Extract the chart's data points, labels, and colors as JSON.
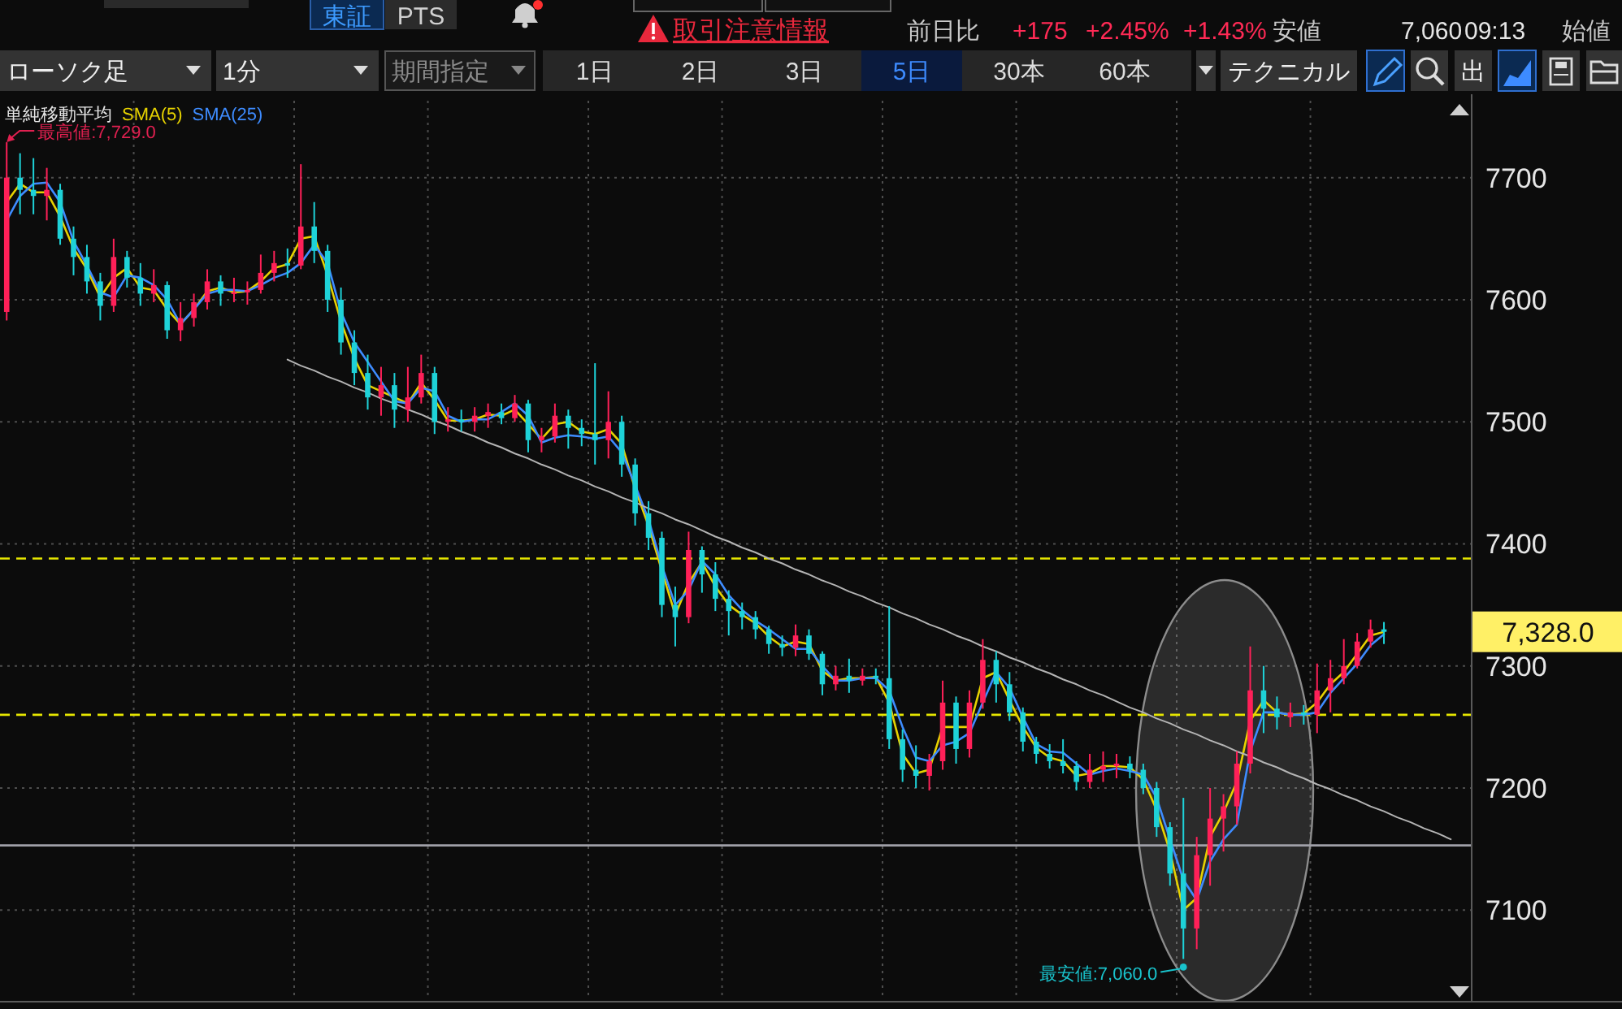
{
  "chart_data": {
    "type": "candlestick",
    "categories": [
      null,
      null,
      null,
      null,
      null,
      null,
      null,
      null,
      null,
      null,
      null,
      null,
      null,
      null,
      null,
      null,
      null,
      null,
      null,
      null,
      null,
      null,
      null,
      null,
      null,
      null,
      null,
      null,
      null,
      null,
      null,
      null,
      null,
      null,
      null,
      null,
      null,
      null,
      null,
      null,
      null,
      null,
      null,
      null,
      null,
      null,
      null,
      null,
      null,
      null,
      null,
      null,
      null,
      null,
      null,
      null,
      null,
      null,
      null,
      null,
      null,
      null,
      null,
      null,
      null,
      null,
      null,
      null,
      null,
      null,
      null,
      null,
      null,
      null,
      null,
      null,
      null,
      null,
      null,
      null,
      null,
      null,
      null,
      null,
      null,
      null,
      null,
      null,
      null,
      null,
      null,
      null,
      null,
      null,
      null,
      null,
      null,
      null,
      null,
      null,
      null,
      null,
      null,
      null,
      null,
      null,
      null,
      null,
      null,
      null
    ],
    "ohlc": [
      [
        7590,
        7729,
        7583,
        7700
      ],
      [
        7700,
        7720,
        7670,
        7690
      ],
      [
        7690,
        7716,
        7670,
        7685
      ],
      [
        7685,
        7708,
        7665,
        7690
      ],
      [
        7690,
        7695,
        7645,
        7650
      ],
      [
        7650,
        7660,
        7620,
        7635
      ],
      [
        7635,
        7645,
        7605,
        7615
      ],
      [
        7615,
        7622,
        7583,
        7595
      ],
      [
        7595,
        7650,
        7590,
        7635
      ],
      [
        7635,
        7640,
        7610,
        7618
      ],
      [
        7618,
        7630,
        7595,
        7605
      ],
      [
        7605,
        7625,
        7598,
        7612
      ],
      [
        7612,
        7615,
        7568,
        7575
      ],
      [
        7575,
        7598,
        7566,
        7585
      ],
      [
        7585,
        7605,
        7578,
        7598
      ],
      [
        7598,
        7625,
        7592,
        7615
      ],
      [
        7615,
        7620,
        7595,
        7605
      ],
      [
        7605,
        7618,
        7598,
        7606
      ],
      [
        7606,
        7615,
        7596,
        7608
      ],
      [
        7608,
        7637,
        7605,
        7622
      ],
      [
        7622,
        7640,
        7615,
        7630
      ],
      [
        7630,
        7642,
        7618,
        7628
      ],
      [
        7628,
        7711,
        7625,
        7660
      ],
      [
        7660,
        7680,
        7630,
        7640
      ],
      [
        7640,
        7645,
        7590,
        7600
      ],
      [
        7600,
        7610,
        7555,
        7565
      ],
      [
        7565,
        7575,
        7530,
        7540
      ],
      [
        7540,
        7555,
        7510,
        7520
      ],
      [
        7520,
        7545,
        7505,
        7530
      ],
      [
        7530,
        7540,
        7495,
        7510
      ],
      [
        7510,
        7545,
        7500,
        7520
      ],
      [
        7520,
        7555,
        7515,
        7540
      ],
      [
        7540,
        7545,
        7490,
        7500
      ],
      [
        7500,
        7512,
        7492,
        7502
      ],
      [
        7502,
        7510,
        7492,
        7500
      ],
      [
        7500,
        7512,
        7492,
        7505
      ],
      [
        7505,
        7515,
        7495,
        7508
      ],
      [
        7508,
        7515,
        7498,
        7503
      ],
      [
        7503,
        7522,
        7500,
        7515
      ],
      [
        7515,
        7518,
        7475,
        7485
      ],
      [
        7485,
        7495,
        7475,
        7488
      ],
      [
        7488,
        7515,
        7483,
        7505
      ],
      [
        7505,
        7510,
        7478,
        7495
      ],
      [
        7495,
        7502,
        7480,
        7490
      ],
      [
        7490,
        7548,
        7465,
        7485
      ],
      [
        7485,
        7525,
        7470,
        7500
      ],
      [
        7500,
        7505,
        7455,
        7465
      ],
      [
        7465,
        7470,
        7415,
        7425
      ],
      [
        7425,
        7435,
        7395,
        7405
      ],
      [
        7405,
        7410,
        7340,
        7350
      ],
      [
        7350,
        7365,
        7316,
        7340
      ],
      [
        7340,
        7410,
        7335,
        7395
      ],
      [
        7395,
        7398,
        7360,
        7375
      ],
      [
        7375,
        7385,
        7345,
        7355
      ],
      [
        7355,
        7362,
        7325,
        7345
      ],
      [
        7345,
        7352,
        7330,
        7340
      ],
      [
        7340,
        7345,
        7322,
        7330
      ],
      [
        7330,
        7333,
        7310,
        7318
      ],
      [
        7318,
        7325,
        7308,
        7315
      ],
      [
        7315,
        7334,
        7308,
        7325
      ],
      [
        7325,
        7330,
        7305,
        7310
      ],
      [
        7310,
        7312,
        7276,
        7285
      ],
      [
        7285,
        7300,
        7280,
        7292
      ],
      [
        7292,
        7306,
        7278,
        7288
      ],
      [
        7288,
        7298,
        7284,
        7292
      ],
      [
        7292,
        7298,
        7285,
        7290
      ],
      [
        7290,
        7349,
        7232,
        7240
      ],
      [
        7240,
        7248,
        7205,
        7215
      ],
      [
        7215,
        7235,
        7200,
        7210
      ],
      [
        7210,
        7228,
        7198,
        7222
      ],
      [
        7222,
        7288,
        7215,
        7270
      ],
      [
        7270,
        7275,
        7220,
        7232
      ],
      [
        7232,
        7280,
        7225,
        7270
      ],
      [
        7270,
        7322,
        7265,
        7305
      ],
      [
        7305,
        7312,
        7270,
        7285
      ],
      [
        7285,
        7295,
        7255,
        7262
      ],
      [
        7262,
        7266,
        7230,
        7238
      ],
      [
        7238,
        7242,
        7220,
        7228
      ],
      [
        7228,
        7236,
        7216,
        7222
      ],
      [
        7222,
        7240,
        7212,
        7218
      ],
      [
        7218,
        7222,
        7198,
        7205
      ],
      [
        7205,
        7228,
        7200,
        7215
      ],
      [
        7215,
        7230,
        7205,
        7218
      ],
      [
        7218,
        7228,
        7208,
        7220
      ],
      [
        7220,
        7226,
        7208,
        7215
      ],
      [
        7215,
        7220,
        7195,
        7200
      ],
      [
        7200,
        7205,
        7160,
        7168
      ],
      [
        7168,
        7172,
        7120,
        7130
      ],
      [
        7130,
        7192,
        7060,
        7085
      ],
      [
        7085,
        7160,
        7068,
        7145
      ],
      [
        7145,
        7200,
        7120,
        7175
      ],
      [
        7175,
        7195,
        7148,
        7185
      ],
      [
        7185,
        7230,
        7170,
        7220
      ],
      [
        7220,
        7316,
        7212,
        7280
      ],
      [
        7280,
        7300,
        7245,
        7265
      ],
      [
        7265,
        7275,
        7248,
        7258
      ],
      [
        7258,
        7270,
        7250,
        7262
      ],
      [
        7262,
        7268,
        7252,
        7260
      ],
      [
        7260,
        7302,
        7245,
        7280
      ],
      [
        7280,
        7305,
        7262,
        7290
      ],
      [
        7290,
        7322,
        7285,
        7300
      ],
      [
        7300,
        7327,
        7298,
        7320
      ],
      [
        7320,
        7338,
        7315,
        7330
      ],
      [
        7330,
        7336,
        7318,
        7328
      ],
      null,
      null,
      null,
      null,
      null,
      null
    ],
    "colors": [
      "#ff2058",
      "#1ed2d8",
      "#1ed2d8",
      "#ff2058",
      "#1ed2d8",
      "#1ed2d8",
      "#1ed2d8",
      "#1ed2d8",
      "#ff2058",
      "#1ed2d8",
      "#1ed2d8",
      "#ff2058",
      "#1ed2d8",
      "#ff2058",
      "#ff2058",
      "#ff2058",
      "#1ed2d8",
      "#ff2058",
      "#ff2058",
      "#ff2058",
      "#ff2058",
      "#1ed2d8",
      "#ff2058",
      "#1ed2d8",
      "#1ed2d8",
      "#1ed2d8",
      "#1ed2d8",
      "#1ed2d8",
      "#ff2058",
      "#1ed2d8",
      "#ff2058",
      "#ff2058",
      "#1ed2d8",
      "#ff2058",
      "#1ed2d8",
      "#ff2058",
      "#ff2058",
      "#1ed2d8",
      "#ff2058",
      "#1ed2d8",
      "#ff2058",
      "#ff2058",
      "#1ed2d8",
      "#1ed2d8",
      "#1ed2d8",
      "#ff2058",
      "#1ed2d8",
      "#1ed2d8",
      "#1ed2d8",
      "#1ed2d8",
      "#1ed2d8",
      "#ff2058",
      "#1ed2d8",
      "#1ed2d8",
      "#1ed2d8",
      "#1ed2d8",
      "#1ed2d8",
      "#1ed2d8",
      "#1ed2d8",
      "#ff2058",
      "#1ed2d8",
      "#1ed2d8",
      "#ff2058",
      "#1ed2d8",
      "#ff2058",
      "#1ed2d8",
      "#1ed2d8",
      "#1ed2d8",
      "#1ed2d8",
      "#ff2058",
      "#ff2058",
      "#1ed2d8",
      "#ff2058",
      "#ff2058",
      "#1ed2d8",
      "#1ed2d8",
      "#1ed2d8",
      "#1ed2d8",
      "#1ed2d8",
      "#1ed2d8",
      "#1ed2d8",
      "#ff2058",
      "#ff2058",
      "#ff2058",
      "#1ed2d8",
      "#1ed2d8",
      "#1ed2d8",
      "#1ed2d8",
      "#1ed2d8",
      "#ff2058",
      "#ff2058",
      "#ff2058",
      "#ff2058",
      "#ff2058",
      "#1ed2d8",
      "#1ed2d8",
      "#ff2058",
      "#1ed2d8",
      "#ff2058",
      "#ff2058",
      "#ff2058",
      "#ff2058",
      "#ff2058",
      "#1ed2d8",
      null,
      null,
      null,
      null,
      null,
      null
    ],
    "series": [
      {
        "name": "SMA(5)",
        "type": "line",
        "color": "#e6d200",
        "values": [
          7680,
          7695,
          7688,
          7688,
          7668,
          7642,
          7625,
          7602,
          7618,
          7626,
          7610,
          7608,
          7592,
          7580,
          7592,
          7607,
          7610,
          7606,
          7607,
          7615,
          7626,
          7629,
          7650,
          7652,
          7620,
          7582,
          7552,
          7530,
          7525,
          7520,
          7515,
          7532,
          7518,
          7501,
          7501,
          7502,
          7506,
          7505,
          7510,
          7498,
          7486,
          7498,
          7500,
          7492,
          7490,
          7494,
          7482,
          7445,
          7415,
          7378,
          7342,
          7368,
          7385,
          7365,
          7350,
          7342,
          7335,
          7324,
          7316,
          7320,
          7318,
          7296,
          7288,
          7290,
          7290,
          7291,
          7270,
          7228,
          7212,
          7215,
          7250,
          7250,
          7250,
          7290,
          7295,
          7272,
          7250,
          7233,
          7225,
          7222,
          7210,
          7212,
          7218,
          7218,
          7217,
          7207,
          7182,
          7148,
          7100,
          7110,
          7160,
          7180,
          7205,
          7255,
          7272,
          7262,
          7260,
          7261,
          7270,
          7285,
          7295,
          7310,
          7325,
          7328,
          null,
          null,
          null,
          null,
          null,
          null
        ]
      },
      {
        "name": "SMA(25)",
        "type": "line",
        "color": "#3e8cff",
        "values": [
          7665,
          7685,
          7695,
          7696,
          7680,
          7648,
          7628,
          7606,
          7602,
          7620,
          7618,
          7612,
          7600,
          7580,
          7592,
          7605,
          7608,
          7608,
          7607,
          7612,
          7618,
          7622,
          7630,
          7645,
          7630,
          7590,
          7565,
          7549,
          7533,
          7517,
          7515,
          7528,
          7525,
          7505,
          7500,
          7502,
          7502,
          7508,
          7515,
          7505,
          7483,
          7487,
          7489,
          7488,
          7486,
          7488,
          7475,
          7448,
          7420,
          7382,
          7350,
          7362,
          7386,
          7375,
          7358,
          7346,
          7337,
          7330,
          7322,
          7314,
          7314,
          7300,
          7288,
          7288,
          7290,
          7290,
          7280,
          7250,
          7225,
          7222,
          7235,
          7238,
          7245,
          7270,
          7295,
          7282,
          7258,
          7236,
          7230,
          7229,
          7220,
          7211,
          7214,
          7216,
          7214,
          7211,
          7192,
          7158,
          7125,
          7108,
          7140,
          7158,
          7170,
          7230,
          7262,
          7262,
          7260,
          7260,
          7262,
          7278,
          7290,
          7302,
          7317,
          7326,
          null,
          null,
          null,
          null,
          null,
          null
        ]
      },
      {
        "type": "line",
        "color": "#b4b4b4",
        "values": [
          null,
          null,
          null,
          null,
          null,
          null,
          null,
          null,
          null,
          null,
          null,
          null,
          null,
          null,
          null,
          null,
          null,
          null,
          null,
          null,
          null,
          7551,
          7546,
          7542,
          7537,
          7533,
          7528,
          7524,
          7519,
          7515,
          7510,
          7506,
          7501,
          7497,
          7492,
          7488,
          7483,
          7479,
          7474,
          7470,
          7465,
          7461,
          7456,
          7452,
          7447,
          7443,
          7438,
          7434,
          7429,
          7425,
          7420,
          7416,
          7411,
          7406,
          7402,
          7397,
          7393,
          7388,
          7384,
          7379,
          7375,
          7370,
          7366,
          7361,
          7357,
          7352,
          7348,
          7343,
          7339,
          7334,
          7330,
          7325,
          7321,
          7316,
          7312,
          7307,
          7303,
          7298,
          7294,
          7289,
          7285,
          7280,
          7276,
          7271,
          7266,
          7262,
          7257,
          7253,
          7248,
          7244,
          7239,
          7235,
          7230,
          7226,
          7221,
          7217,
          7212,
          7208,
          7203,
          7199,
          7194,
          7190,
          7185,
          7181,
          7176,
          7172,
          7167,
          7163,
          7158,
          null
        ]
      }
    ],
    "legend": "top left",
    "legend_title": "単純移動平均",
    "ylim": [
      7027,
      7763
    ],
    "yticks": [
      7100,
      7200,
      7300,
      7400,
      7500,
      7600,
      7700
    ],
    "grid": true,
    "tick_labels": "y",
    "ref_lines": [
      {
        "axis": "y",
        "value": 7388,
        "color": "#e6e600",
        "line_style": "dashed"
      },
      {
        "axis": "y",
        "value": 7260,
        "color": "#e6e600",
        "line_style": "dashed"
      },
      {
        "axis": "y",
        "value": 7153,
        "color": "#a0a0a8",
        "line_style": "solid"
      }
    ],
    "annotations": [
      "最高値:7,729.0",
      "最安値:7,060.0",
      "7,328.0",
      "東証",
      "PTS",
      "取引注意情報",
      "前日比",
      "+175",
      "+2.45%",
      "+1.43%",
      "安値",
      "7,060",
      "09:13",
      "始値",
      "ローソク足",
      "1分",
      "期間指定",
      "1日",
      "2日",
      "3日",
      "5日",
      "30本",
      "60本",
      "テクニカル",
      "出"
    ]
  }
}
